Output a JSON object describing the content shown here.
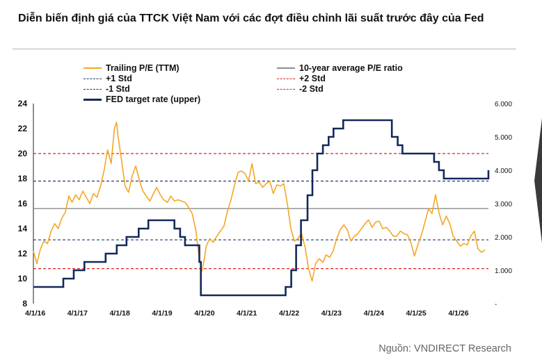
{
  "title": "Diễn biến định giá của TTCK Việt Nam với các đợt điều chỉnh lãi suất trước đây của Fed",
  "source": "Nguồn: VNDIRECT Research",
  "legend": [
    {
      "key": "pe",
      "label": "Trailing P/E (TTM)",
      "color": "#f5a623",
      "style": "solid"
    },
    {
      "key": "avg",
      "label": "10-year average P/E ratio",
      "color": "#8c8c8c",
      "style": "solid"
    },
    {
      "key": "p1",
      "label": "+1 Std",
      "color": "#1f3a6e",
      "style": "dashed"
    },
    {
      "key": "p2",
      "label": "+2 Std",
      "color": "#e02020",
      "style": "dashed"
    },
    {
      "key": "m1",
      "label": "-1 Std",
      "color": "#1f3a6e",
      "style": "dashed"
    },
    {
      "key": "m2",
      "label": "-2 Std",
      "color": "#e02020",
      "style": "dashed"
    },
    {
      "key": "fed",
      "label": "FED target rate (upper)",
      "color": "#13285a",
      "style": "solid"
    }
  ],
  "chart_data": {
    "type": "line",
    "title": "Diễn biến định giá của TTCK Việt Nam với các đợt điều chỉnh lãi suất trước đây của Fed",
    "x_range": [
      "2016-04-01",
      "2026-12-31"
    ],
    "x_ticks": [
      "4/1/16",
      "4/1/17",
      "4/1/18",
      "4/1/19",
      "4/1/20",
      "4/1/21",
      "4/1/22",
      "4/1/23",
      "4/1/24",
      "4/1/25",
      "4/1/26"
    ],
    "left_axis": {
      "ylim": [
        8,
        24
      ],
      "ticks": [
        "8",
        "10",
        "12",
        "14",
        "16",
        "18",
        "20",
        "22",
        "24"
      ]
    },
    "right_axis": {
      "ylim": [
        0,
        6
      ],
      "ticks": [
        "-",
        "1.000",
        "2.000",
        "3.000",
        "4.000",
        "5.000",
        "6.000"
      ]
    },
    "reference_lines": {
      "avg": 15.6,
      "p1": 17.8,
      "p2": 20.0,
      "m1": 13.1,
      "m2": 10.8
    },
    "series": [
      {
        "name": "Trailing P/E (TTM)",
        "axis": "left",
        "points": [
          [
            "2016-04-01",
            12.2
          ],
          [
            "2016-05-01",
            11.2
          ],
          [
            "2016-06-01",
            12.4
          ],
          [
            "2016-07-01",
            13.0
          ],
          [
            "2016-08-01",
            12.8
          ],
          [
            "2016-09-01",
            13.8
          ],
          [
            "2016-10-01",
            14.4
          ],
          [
            "2016-11-01",
            14.0
          ],
          [
            "2016-12-01",
            14.8
          ],
          [
            "2017-01-01",
            15.3
          ],
          [
            "2017-02-01",
            16.6
          ],
          [
            "2017-03-01",
            16.1
          ],
          [
            "2017-04-01",
            16.7
          ],
          [
            "2017-05-01",
            16.3
          ],
          [
            "2017-06-01",
            17.0
          ],
          [
            "2017-07-01",
            16.5
          ],
          [
            "2017-08-01",
            16.0
          ],
          [
            "2017-09-01",
            16.8
          ],
          [
            "2017-10-01",
            16.5
          ],
          [
            "2017-11-01",
            17.4
          ],
          [
            "2017-12-01",
            18.6
          ],
          [
            "2018-01-01",
            20.3
          ],
          [
            "2018-02-01",
            19.2
          ],
          [
            "2018-03-01",
            22.0
          ],
          [
            "2018-03-20",
            22.5
          ],
          [
            "2018-04-01",
            21.4
          ],
          [
            "2018-05-01",
            19.5
          ],
          [
            "2018-06-01",
            17.4
          ],
          [
            "2018-07-01",
            16.9
          ],
          [
            "2018-08-01",
            18.2
          ],
          [
            "2018-09-01",
            19.0
          ],
          [
            "2018-10-01",
            17.9
          ],
          [
            "2018-11-01",
            17.0
          ],
          [
            "2018-12-01",
            16.6
          ],
          [
            "2019-01-01",
            16.2
          ],
          [
            "2019-02-01",
            16.8
          ],
          [
            "2019-03-01",
            17.3
          ],
          [
            "2019-04-01",
            16.7
          ],
          [
            "2019-05-01",
            16.3
          ],
          [
            "2019-06-01",
            16.1
          ],
          [
            "2019-07-01",
            16.6
          ],
          [
            "2019-08-01",
            16.2
          ],
          [
            "2019-09-01",
            16.3
          ],
          [
            "2019-10-01",
            16.2
          ],
          [
            "2019-11-01",
            16.1
          ],
          [
            "2019-12-01",
            15.7
          ],
          [
            "2020-01-01",
            15.2
          ],
          [
            "2020-02-01",
            13.9
          ],
          [
            "2020-03-01",
            11.7
          ],
          [
            "2020-03-25",
            10.6
          ],
          [
            "2020-04-15",
            11.6
          ],
          [
            "2020-05-01",
            12.6
          ],
          [
            "2020-06-01",
            13.2
          ],
          [
            "2020-07-01",
            12.9
          ],
          [
            "2020-08-01",
            13.4
          ],
          [
            "2020-09-01",
            13.8
          ],
          [
            "2020-10-01",
            14.2
          ],
          [
            "2020-11-01",
            15.4
          ],
          [
            "2020-12-01",
            16.3
          ],
          [
            "2021-01-01",
            17.5
          ],
          [
            "2021-02-01",
            18.5
          ],
          [
            "2021-03-01",
            18.6
          ],
          [
            "2021-04-01",
            18.4
          ],
          [
            "2021-05-01",
            17.8
          ],
          [
            "2021-06-01",
            19.2
          ],
          [
            "2021-07-01",
            17.6
          ],
          [
            "2021-08-01",
            17.7
          ],
          [
            "2021-09-01",
            17.3
          ],
          [
            "2021-10-01",
            17.6
          ],
          [
            "2021-11-01",
            17.8
          ],
          [
            "2021-12-01",
            16.8
          ],
          [
            "2022-01-01",
            17.5
          ],
          [
            "2022-02-01",
            17.4
          ],
          [
            "2022-03-01",
            17.6
          ],
          [
            "2022-04-01",
            16.0
          ],
          [
            "2022-05-01",
            14.0
          ],
          [
            "2022-06-01",
            13.0
          ],
          [
            "2022-07-01",
            13.2
          ],
          [
            "2022-08-01",
            13.6
          ],
          [
            "2022-09-01",
            12.5
          ],
          [
            "2022-10-01",
            10.8
          ],
          [
            "2022-11-01",
            9.8
          ],
          [
            "2022-12-01",
            11.2
          ],
          [
            "2023-01-01",
            11.6
          ],
          [
            "2023-02-01",
            11.3
          ],
          [
            "2023-03-01",
            11.9
          ],
          [
            "2023-04-01",
            11.7
          ],
          [
            "2023-05-01",
            12.2
          ],
          [
            "2023-06-01",
            13.2
          ],
          [
            "2023-07-01",
            13.9
          ],
          [
            "2023-08-01",
            14.3
          ],
          [
            "2023-09-01",
            13.9
          ],
          [
            "2023-10-01",
            13.0
          ],
          [
            "2023-11-01",
            13.4
          ],
          [
            "2023-12-01",
            13.6
          ],
          [
            "2024-01-01",
            14.0
          ],
          [
            "2024-02-01",
            14.4
          ],
          [
            "2024-03-01",
            14.7
          ],
          [
            "2024-04-01",
            14.1
          ],
          [
            "2024-05-01",
            14.5
          ],
          [
            "2024-06-01",
            14.6
          ],
          [
            "2024-07-01",
            14.0
          ],
          [
            "2024-08-01",
            14.1
          ],
          [
            "2024-09-01",
            13.8
          ],
          [
            "2024-10-01",
            13.4
          ],
          [
            "2024-11-01",
            13.4
          ],
          [
            "2024-12-01",
            13.8
          ],
          [
            "2025-01-01",
            13.6
          ],
          [
            "2025-02-01",
            13.5
          ],
          [
            "2025-03-01",
            12.9
          ],
          [
            "2025-04-01",
            11.8
          ],
          [
            "2025-05-01",
            12.7
          ],
          [
            "2025-06-01",
            13.5
          ],
          [
            "2025-07-01",
            14.5
          ],
          [
            "2025-08-01",
            15.6
          ],
          [
            "2025-09-01",
            15.2
          ],
          [
            "2025-10-01",
            16.7
          ],
          [
            "2025-11-01",
            15.2
          ],
          [
            "2025-12-01",
            14.3
          ],
          [
            "2026-01-01",
            15.0
          ],
          [
            "2026-02-01",
            14.4
          ],
          [
            "2026-03-01",
            13.4
          ],
          [
            "2026-04-01",
            13.0
          ],
          [
            "2026-05-01",
            12.6
          ],
          [
            "2026-06-01",
            12.8
          ],
          [
            "2026-07-01",
            12.7
          ],
          [
            "2026-08-01",
            13.4
          ],
          [
            "2026-09-01",
            13.8
          ],
          [
            "2026-10-01",
            12.4
          ],
          [
            "2026-11-01",
            12.1
          ],
          [
            "2026-12-01",
            12.3
          ]
        ]
      },
      {
        "name": "FED target rate (upper)",
        "axis": "right",
        "step": true,
        "points": [
          [
            "2016-04-01",
            0.5
          ],
          [
            "2016-12-15",
            0.75
          ],
          [
            "2017-03-15",
            1.0
          ],
          [
            "2017-06-15",
            1.25
          ],
          [
            "2017-12-15",
            1.5
          ],
          [
            "2018-03-21",
            1.75
          ],
          [
            "2018-06-13",
            2.0
          ],
          [
            "2018-09-26",
            2.25
          ],
          [
            "2018-12-19",
            2.5
          ],
          [
            "2019-08-01",
            2.25
          ],
          [
            "2019-09-19",
            2.0
          ],
          [
            "2019-10-31",
            1.75
          ],
          [
            "2020-03-03",
            1.25
          ],
          [
            "2020-03-16",
            0.25
          ],
          [
            "2022-03-17",
            0.5
          ],
          [
            "2022-05-05",
            1.0
          ],
          [
            "2022-06-16",
            1.75
          ],
          [
            "2022-07-28",
            2.5
          ],
          [
            "2022-09-22",
            3.25
          ],
          [
            "2022-11-03",
            4.0
          ],
          [
            "2022-12-15",
            4.5
          ],
          [
            "2023-02-02",
            4.75
          ],
          [
            "2023-03-23",
            5.0
          ],
          [
            "2023-05-04",
            5.25
          ],
          [
            "2023-07-27",
            5.5
          ],
          [
            "2024-09-19",
            5.0
          ],
          [
            "2024-11-08",
            4.75
          ],
          [
            "2024-12-19",
            4.5
          ],
          [
            "2025-09-18",
            4.25
          ],
          [
            "2025-10-30",
            4.0
          ],
          [
            "2025-12-11",
            3.75
          ],
          [
            "2026-12-20",
            3.75
          ],
          [
            "2026-12-31",
            4.0
          ]
        ]
      }
    ]
  }
}
